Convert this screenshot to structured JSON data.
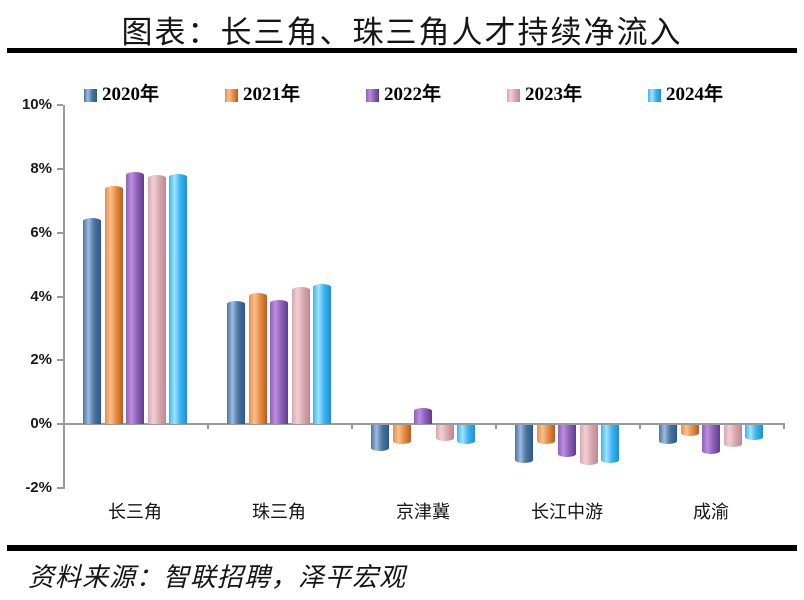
{
  "title": "图表：长三角、珠三角人才持续净流入",
  "source": "资料来源：智联招聘，泽平宏观",
  "chart_data": {
    "type": "bar",
    "title": "图表：长三角、珠三角人才持续净流入",
    "categories": [
      "长三角",
      "珠三角",
      "京津冀",
      "长江中游",
      "成渝"
    ],
    "series": [
      {
        "name": "2020年",
        "values": [
          6.45,
          3.85,
          -0.8,
          -1.2,
          -0.6
        ],
        "color": {
          "base": "#4A74A4",
          "light": "#9EBDDD",
          "dark": "#2F5788"
        }
      },
      {
        "name": "2021年",
        "values": [
          7.45,
          4.1,
          -0.6,
          -0.6,
          -0.35
        ],
        "color": {
          "base": "#EC8C42",
          "light": "#F8C08E",
          "dark": "#B55E22"
        }
      },
      {
        "name": "2022年",
        "values": [
          7.9,
          3.9,
          0.5,
          -1.0,
          -0.9
        ],
        "color": {
          "base": "#8E5FBE",
          "light": "#B98FD9",
          "dark": "#5D3E87"
        }
      },
      {
        "name": "2023年",
        "values": [
          7.8,
          4.3,
          -0.5,
          -1.25,
          -0.7
        ],
        "color": {
          "base": "#D8A7AE",
          "light": "#EFD0D3",
          "dark": "#BB8890"
        }
      },
      {
        "name": "2024年",
        "values": [
          7.85,
          4.4,
          -0.6,
          -1.2,
          -0.45
        ],
        "color": {
          "base": "#39B4F0",
          "light": "#A3E2FC",
          "dark": "#1E8FD5"
        }
      }
    ],
    "yticks": [
      10,
      8,
      6,
      4,
      2,
      0,
      -2
    ],
    "ytick_labels": [
      "10%",
      "8%",
      "6%",
      "4%",
      "2%",
      "0%",
      "-2%"
    ],
    "ylim": [
      -2,
      10
    ],
    "xlabel": "",
    "ylabel": "",
    "grid": false,
    "legend_position": "top",
    "axis_color": "#9b9b9b"
  }
}
